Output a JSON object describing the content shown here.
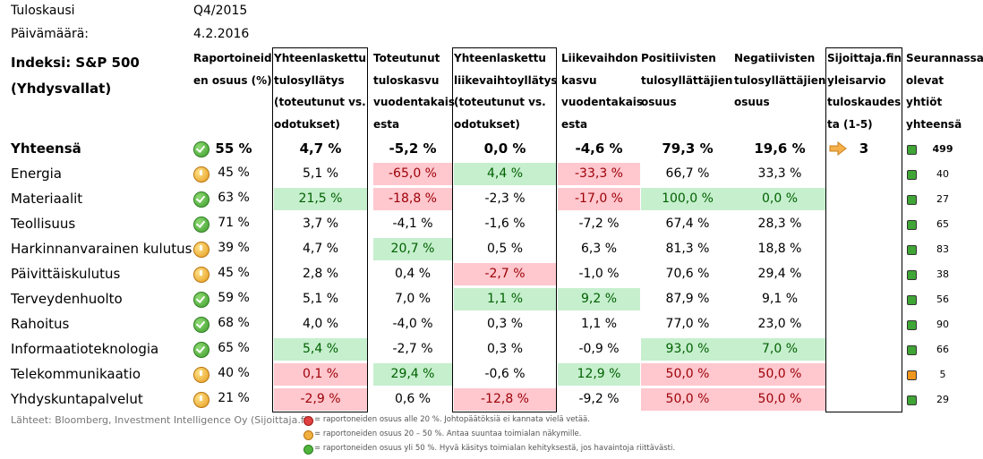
{
  "meta": {
    "season_label": "Tuloskausi",
    "season_value": "Q4/2015",
    "date_label": "Päivämäärä:",
    "date_value": "4.2.2016",
    "index_line1": "Indeksi: S&P 500",
    "index_line2": "(Yhdysvallat)"
  },
  "headers": [
    [
      "Raportoineid",
      "en osuus (%)"
    ],
    [
      "Yhteenlaskettu",
      "tulosyllätys",
      "(toteutunut vs.",
      "odotukset)"
    ],
    [
      "Toteutunut",
      "tuloskasvu",
      "vuodentakais",
      "esta"
    ],
    [
      "Yhteenlaskettu",
      "liikevaihtoyllätys",
      "(toteutunut vs.",
      "odotukset)"
    ],
    [
      "Liikevaihdon",
      "kasvu",
      "vuodentakais",
      "esta"
    ],
    [
      "Positiivisten",
      "tulosyllättäjien",
      "osuus"
    ],
    [
      "Negatiivisten",
      "tulosyllättäjien",
      "osuus"
    ],
    [
      "Sijoittaja.fin",
      "yleisarvio",
      "tuloskaudes",
      "ta (1-5)"
    ],
    [
      "Seurannassa",
      "olevat yhtiöt",
      "yhteensä"
    ]
  ],
  "total_row": {
    "name": "Yhteensä",
    "status": "check",
    "reported": "55 %",
    "earn_surprise": "4,7 %",
    "earn_growth": "-5,2 %",
    "rev_surprise": "0,0 %",
    "rev_growth": "-4,6 %",
    "pos_share": "79,3 %",
    "neg_share": "19,6 %",
    "rating_icon": "arrow-right-icon",
    "rating": "3",
    "count_icon": "green",
    "count": "499"
  },
  "rows": [
    {
      "name": "Energia",
      "status": "warn",
      "reported": "45 %",
      "earn_surprise": "5,1 %",
      "earn_growth": "-65,0 %",
      "rev_surprise": "4,4 %",
      "rev_growth": "-33,3 %",
      "pos_share": "66,7 %",
      "neg_share": "33,3 %",
      "count_icon": "green",
      "count": "40"
    },
    {
      "name": "Materiaalit",
      "status": "check",
      "reported": "63 %",
      "earn_surprise": "21,5 %",
      "earn_growth": "-18,8 %",
      "rev_surprise": "-2,3 %",
      "rev_growth": "-17,0 %",
      "pos_share": "100,0 %",
      "neg_share": "0,0 %",
      "count_icon": "green",
      "count": "27"
    },
    {
      "name": "Teollisuus",
      "status": "check",
      "reported": "71 %",
      "earn_surprise": "3,7 %",
      "earn_growth": "-4,1 %",
      "rev_surprise": "-1,6 %",
      "rev_growth": "-7,2 %",
      "pos_share": "67,4 %",
      "neg_share": "28,3 %",
      "count_icon": "green",
      "count": "65"
    },
    {
      "name": "Harkinnanvarainen kulutus",
      "status": "warn",
      "reported": "39 %",
      "earn_surprise": "4,7 %",
      "earn_growth": "20,7 %",
      "rev_surprise": "0,5 %",
      "rev_growth": "6,3 %",
      "pos_share": "81,3 %",
      "neg_share": "18,8 %",
      "count_icon": "green",
      "count": "83"
    },
    {
      "name": "Päivittäiskulutus",
      "status": "warn",
      "reported": "45 %",
      "earn_surprise": "2,8 %",
      "earn_growth": "0,4 %",
      "rev_surprise": "-2,7 %",
      "rev_growth": "-1,0 %",
      "pos_share": "70,6 %",
      "neg_share": "29,4 %",
      "count_icon": "green",
      "count": "38"
    },
    {
      "name": "Terveydenhuolto",
      "status": "check",
      "reported": "59 %",
      "earn_surprise": "5,1 %",
      "earn_growth": "7,0 %",
      "rev_surprise": "1,1 %",
      "rev_growth": "9,2 %",
      "pos_share": "87,9 %",
      "neg_share": "9,1 %",
      "count_icon": "green",
      "count": "56"
    },
    {
      "name": "Rahoitus",
      "status": "check",
      "reported": "68 %",
      "earn_surprise": "4,0 %",
      "earn_growth": "-4,0 %",
      "rev_surprise": "0,3 %",
      "rev_growth": "1,1 %",
      "pos_share": "77,0 %",
      "neg_share": "23,0 %",
      "count_icon": "green",
      "count": "90"
    },
    {
      "name": "Informaatioteknologia",
      "status": "check",
      "reported": "65 %",
      "earn_surprise": "5,4 %",
      "earn_growth": "-2,7 %",
      "rev_surprise": "0,3 %",
      "rev_growth": "-0,9 %",
      "pos_share": "93,0 %",
      "neg_share": "7,0 %",
      "count_icon": "green",
      "count": "66"
    },
    {
      "name": "Telekommunikaatio",
      "status": "warn",
      "reported": "40 %",
      "earn_surprise": "0,1 %",
      "earn_growth": "29,4 %",
      "rev_surprise": "-0,6 %",
      "rev_growth": "12,9 %",
      "pos_share": "50,0 %",
      "neg_share": "50,0 %",
      "count_icon": "orange",
      "count": "5"
    },
    {
      "name": "Yhdyskuntapalvelut",
      "status": "warn",
      "reported": "21 %",
      "earn_surprise": "-2,9 %",
      "earn_growth": "0,6 %",
      "rev_surprise": "-12,8 %",
      "rev_growth": "-9,2 %",
      "pos_share": "50,0 %",
      "neg_share": "50,0 %",
      "count_icon": "green",
      "count": "29"
    }
  ],
  "highlights": {
    "Energia": {
      "earn_growth": "red",
      "rev_surprise": "green",
      "rev_growth": "red"
    },
    "Materiaalit": {
      "earn_surprise": "green",
      "earn_growth": "red",
      "rev_growth": "red",
      "pos_share": "green",
      "neg_share": "green"
    },
    "Harkinnanvarainen kulutus": {
      "earn_growth": "green"
    },
    "Päivittäiskulutus": {
      "rev_surprise": "red"
    },
    "Terveydenhuolto": {
      "rev_surprise": "green",
      "rev_growth": "green"
    },
    "Informaatioteknologia": {
      "earn_surprise": "green",
      "pos_share": "green",
      "neg_share": "green"
    },
    "Telekommunikaatio": {
      "earn_surprise": "red",
      "earn_growth": "green",
      "rev_growth": "green",
      "pos_share": "red",
      "neg_share": "red"
    },
    "Yhdyskuntapalvelut": {
      "earn_surprise": "red",
      "rev_surprise": "red",
      "pos_share": "red",
      "neg_share": "red"
    }
  },
  "footer": {
    "source": "Lähteet: Bloomberg, Investment Intelligence Oy (Sijoittaja.fi)",
    "legend_red": "= raportoneiden osuus alle 20 %. Johtopäätöksiä ei kannata vielä vetää.",
    "legend_orange": "= raportoneiden osuus 20 – 50 %. Antaa suuntaa toimialan näkymille.",
    "legend_green": "= raportoneiden osuus yli 50 %. Hyvä käsitys toimialan kehityksestä, jos havaintoja riittävästi."
  }
}
